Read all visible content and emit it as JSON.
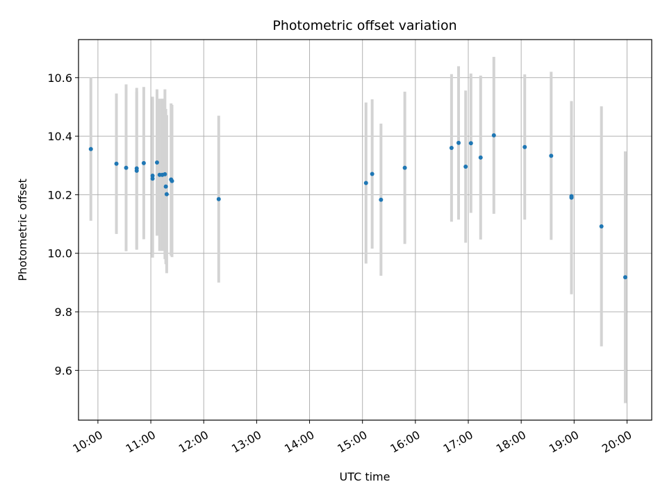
{
  "chart_data": {
    "type": "scatter",
    "title": "Photometric offset variation",
    "xlabel": "UTC time",
    "ylabel": "Photometric offset",
    "x_tick_labels": [
      "10:00",
      "11:00",
      "12:00",
      "13:00",
      "14:00",
      "15:00",
      "16:00",
      "17:00",
      "18:00",
      "19:00",
      "20:00"
    ],
    "y_ticks": [
      9.6,
      9.8,
      10.0,
      10.2,
      10.4,
      10.6
    ],
    "y_tick_labels": [
      "9.6",
      "9.8",
      "10.0",
      "10.2",
      "10.4",
      "10.6"
    ],
    "xlim": [
      "09:38",
      "20:28"
    ],
    "ylim": [
      9.43,
      10.73
    ],
    "grid": true,
    "marker_color": "#1f77b4",
    "errorbar_color": "#d3d3d3",
    "points": [
      {
        "x": "09:52",
        "y": 10.356,
        "err": 0.245
      },
      {
        "x": "10:21",
        "y": 10.306,
        "err": 0.24
      },
      {
        "x": "10:32",
        "y": 10.292,
        "err": 0.285
      },
      {
        "x": "10:44",
        "y": 10.29,
        "err": 0.275
      },
      {
        "x": "10:44",
        "y": 10.282,
        "err": 0.27
      },
      {
        "x": "10:52",
        "y": 10.308,
        "err": 0.26
      },
      {
        "x": "11:02",
        "y": 10.265,
        "err": 0.27
      },
      {
        "x": "11:02",
        "y": 10.255,
        "err": 0.27
      },
      {
        "x": "11:07",
        "y": 10.31,
        "err": 0.25
      },
      {
        "x": "11:10",
        "y": 10.268,
        "err": 0.26
      },
      {
        "x": "11:13",
        "y": 10.268,
        "err": 0.26
      },
      {
        "x": "11:16",
        "y": 10.27,
        "err": 0.29
      },
      {
        "x": "11:17",
        "y": 10.228,
        "err": 0.265
      },
      {
        "x": "11:18",
        "y": 10.202,
        "err": 0.27
      },
      {
        "x": "11:23",
        "y": 10.252,
        "err": 0.26
      },
      {
        "x": "11:24",
        "y": 10.247,
        "err": 0.26
      },
      {
        "x": "12:17",
        "y": 10.185,
        "err": 0.285
      },
      {
        "x": "15:04",
        "y": 10.24,
        "err": 0.275
      },
      {
        "x": "15:11",
        "y": 10.271,
        "err": 0.255
      },
      {
        "x": "15:21",
        "y": 10.183,
        "err": 0.26
      },
      {
        "x": "15:48",
        "y": 10.292,
        "err": 0.26
      },
      {
        "x": "16:41",
        "y": 10.36,
        "err": 0.252
      },
      {
        "x": "16:49",
        "y": 10.377,
        "err": 0.262
      },
      {
        "x": "16:57",
        "y": 10.296,
        "err": 0.26
      },
      {
        "x": "17:03",
        "y": 10.376,
        "err": 0.238
      },
      {
        "x": "17:14",
        "y": 10.327,
        "err": 0.28
      },
      {
        "x": "17:29",
        "y": 10.403,
        "err": 0.268
      },
      {
        "x": "18:04",
        "y": 10.363,
        "err": 0.248
      },
      {
        "x": "18:34",
        "y": 10.333,
        "err": 0.287
      },
      {
        "x": "18:57",
        "y": 10.195,
        "err": 0.325
      },
      {
        "x": "18:57",
        "y": 10.19,
        "err": 0.33
      },
      {
        "x": "19:31",
        "y": 10.092,
        "err": 0.41
      },
      {
        "x": "19:58",
        "y": 9.918,
        "err": 0.43
      }
    ]
  }
}
